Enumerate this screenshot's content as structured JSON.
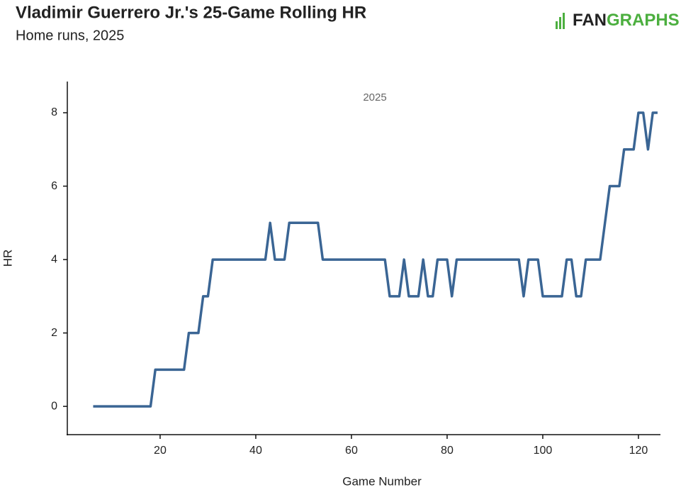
{
  "chart_data": {
    "type": "line",
    "title": "Vladimir Guerrero Jr.'s 25-Game Rolling HR",
    "subtitle": "Home runs, 2025",
    "logo": {
      "part1": "FAN",
      "part2": "GRAPHS"
    },
    "panel_label": "2025",
    "x_label": "Game Number",
    "y_label": "HR",
    "x": [
      6,
      7,
      8,
      9,
      10,
      11,
      12,
      13,
      14,
      15,
      16,
      17,
      18,
      19,
      20,
      21,
      22,
      23,
      24,
      25,
      26,
      27,
      28,
      29,
      30,
      31,
      32,
      33,
      34,
      35,
      36,
      37,
      38,
      39,
      40,
      41,
      42,
      43,
      44,
      45,
      46,
      47,
      48,
      49,
      50,
      51,
      52,
      53,
      54,
      55,
      56,
      57,
      58,
      59,
      60,
      61,
      62,
      63,
      64,
      65,
      66,
      67,
      68,
      69,
      70,
      71,
      72,
      73,
      74,
      75,
      76,
      77,
      78,
      79,
      80,
      81,
      82,
      83,
      84,
      85,
      86,
      87,
      88,
      89,
      90,
      91,
      92,
      93,
      94,
      95,
      96,
      97,
      98,
      99,
      100,
      101,
      102,
      103,
      104,
      105,
      106,
      107,
      108,
      109,
      110,
      111,
      112,
      113,
      114,
      115,
      116,
      117,
      118,
      119,
      120,
      121,
      122,
      123,
      124
    ],
    "series": [
      {
        "color": "#3a6594",
        "values": [
          0,
          0,
          0,
          0,
          0,
          0,
          0,
          0,
          0,
          0,
          0,
          0,
          0,
          1,
          1,
          1,
          1,
          1,
          1,
          1,
          2,
          2,
          2,
          3,
          3,
          4,
          4,
          4,
          4,
          4,
          4,
          4,
          4,
          4,
          4,
          4,
          4,
          5,
          4,
          4,
          4,
          5,
          5,
          5,
          5,
          5,
          5,
          5,
          4,
          4,
          4,
          4,
          4,
          4,
          4,
          4,
          4,
          4,
          4,
          4,
          4,
          4,
          3,
          3,
          3,
          4,
          3,
          3,
          3,
          4,
          3,
          3,
          4,
          4,
          4,
          3,
          4,
          4,
          4,
          4,
          4,
          4,
          4,
          4,
          4,
          4,
          4,
          4,
          4,
          4,
          3,
          4,
          4,
          4,
          3,
          3,
          3,
          3,
          3,
          4,
          4,
          3,
          3,
          4,
          4,
          4,
          4,
          5,
          6,
          6,
          6,
          7,
          7,
          7,
          8,
          8,
          7,
          8,
          8
        ]
      }
    ],
    "xlim": [
      0.6,
      124.6
    ],
    "xticks": [
      20,
      40,
      60,
      80,
      100,
      120
    ],
    "ylim": [
      -0.77,
      8.85
    ],
    "yticks": [
      0,
      2,
      4,
      6,
      8
    ]
  }
}
